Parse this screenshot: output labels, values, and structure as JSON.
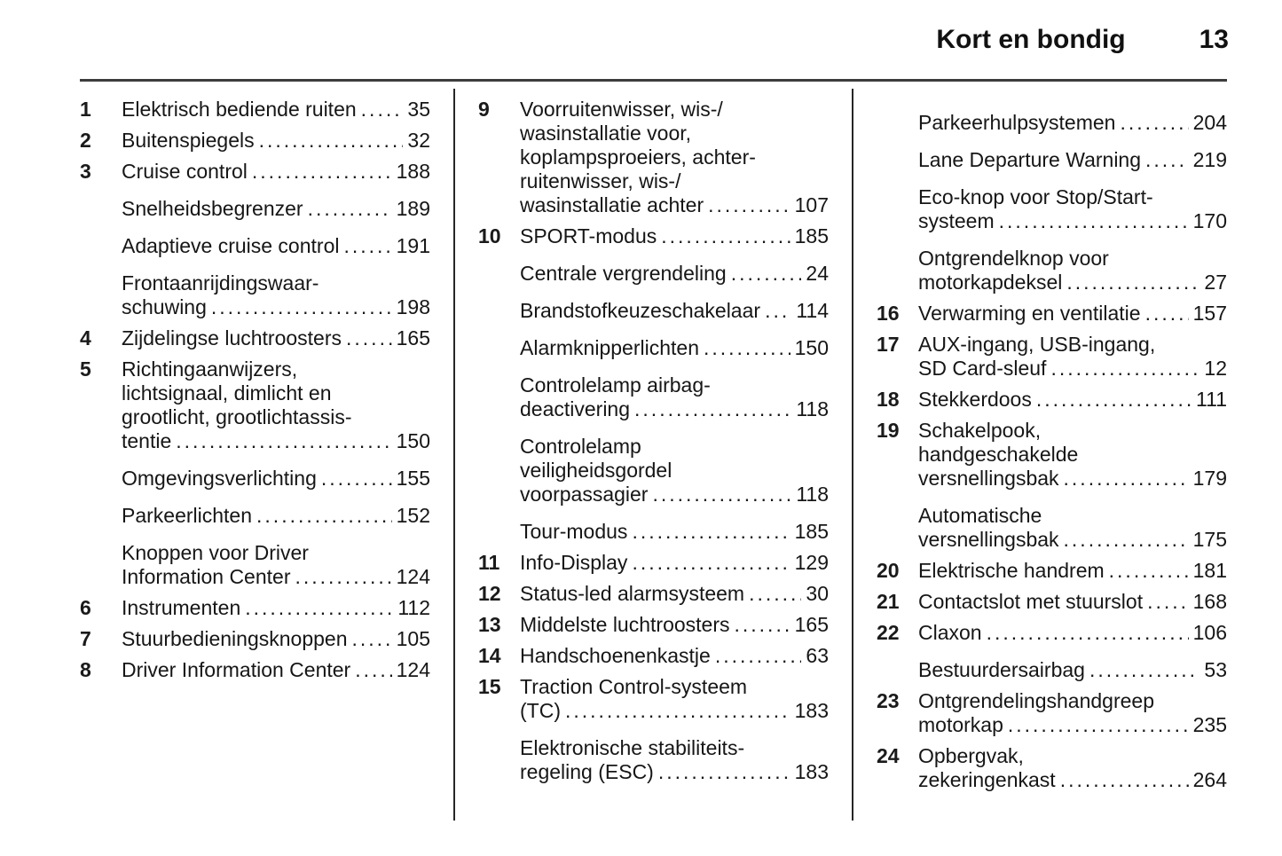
{
  "header": {
    "section_title": "Kort en bondig",
    "page_number": "13"
  },
  "columns": [
    {
      "entries": [
        {
          "num": "1",
          "lines": [
            "Elektrisch bediende ruiten"
          ],
          "page": "35"
        },
        {
          "num": "2",
          "lines": [
            "Buitenspiegels"
          ],
          "page": "32"
        },
        {
          "num": "3",
          "lines": [
            "Cruise control"
          ],
          "page": "188"
        },
        {
          "num": "",
          "lines": [
            "Snelheidsbegrenzer"
          ],
          "page": "189"
        },
        {
          "num": "",
          "lines": [
            "Adaptieve cruise control"
          ],
          "page": "191"
        },
        {
          "num": "",
          "lines": [
            "Frontaanrijdingswaar-",
            "schuwing"
          ],
          "page": "198"
        },
        {
          "num": "4",
          "lines": [
            "Zijdelingse luchtroosters"
          ],
          "page": "165"
        },
        {
          "num": "5",
          "lines": [
            "Richtingaanwijzers,",
            "lichtsignaal, dimlicht en",
            "grootlicht, grootlichtassis-",
            "tentie"
          ],
          "page": "150"
        },
        {
          "num": "",
          "lines": [
            "Omgevingsverlichting"
          ],
          "page": "155"
        },
        {
          "num": "",
          "lines": [
            "Parkeerlichten"
          ],
          "page": "152"
        },
        {
          "num": "",
          "lines": [
            "Knoppen voor Driver",
            "Information Center"
          ],
          "page": "124"
        },
        {
          "num": "6",
          "lines": [
            "Instrumenten"
          ],
          "page": "112"
        },
        {
          "num": "7",
          "lines": [
            "Stuurbedieningsknoppen"
          ],
          "page": "105"
        },
        {
          "num": "8",
          "lines": [
            "Driver Information Center"
          ],
          "page": "124"
        }
      ]
    },
    {
      "entries": [
        {
          "num": "9",
          "lines": [
            "Voorruitenwisser, wis-/",
            "wasinstallatie voor,",
            "koplampsproeiers, achter-",
            "ruitenwisser, wis-/",
            "wasinstallatie achter"
          ],
          "page": "107"
        },
        {
          "num": "10",
          "lines": [
            "SPORT-modus"
          ],
          "page": "185"
        },
        {
          "num": "",
          "lines": [
            "Centrale vergrendeling"
          ],
          "page": "24"
        },
        {
          "num": "",
          "lines": [
            "Brandstofkeuzeschakelaar"
          ],
          "page": "114"
        },
        {
          "num": "",
          "lines": [
            "Alarmknipperlichten"
          ],
          "page": "150"
        },
        {
          "num": "",
          "lines": [
            "Controlelamp airbag-",
            "deactivering"
          ],
          "page": "118"
        },
        {
          "num": "",
          "lines": [
            "Controlelamp",
            "veiligheidsgordel",
            "voorpassagier"
          ],
          "page": "118"
        },
        {
          "num": "",
          "lines": [
            "Tour-modus"
          ],
          "page": "185"
        },
        {
          "num": "11",
          "lines": [
            "Info-Display"
          ],
          "page": "129"
        },
        {
          "num": "12",
          "lines": [
            "Status-led alarmsysteem"
          ],
          "page": "30"
        },
        {
          "num": "13",
          "lines": [
            "Middelste luchtroosters"
          ],
          "page": "165"
        },
        {
          "num": "14",
          "lines": [
            "Handschoenenkastje"
          ],
          "page": "63"
        },
        {
          "num": "15",
          "lines": [
            "Traction Control-systeem",
            "(TC)"
          ],
          "page": "183"
        },
        {
          "num": "",
          "lines": [
            "Elektronische stabiliteits-",
            "regeling (ESC)"
          ],
          "page": "183"
        }
      ]
    },
    {
      "entries": [
        {
          "num": "",
          "lines": [
            "Parkeerhulpsystemen"
          ],
          "page": "204"
        },
        {
          "num": "",
          "lines": [
            "Lane Departure Warning"
          ],
          "page": "219"
        },
        {
          "num": "",
          "lines": [
            "Eco-knop voor Stop/Start-",
            "systeem"
          ],
          "page": "170"
        },
        {
          "num": "",
          "lines": [
            "Ontgrendelknop voor",
            "motorkapdeksel"
          ],
          "page": "27"
        },
        {
          "num": "16",
          "lines": [
            "Verwarming en ventilatie"
          ],
          "page": "157"
        },
        {
          "num": "17",
          "lines": [
            "AUX-ingang, USB-ingang,",
            "SD Card-sleuf"
          ],
          "page": "12"
        },
        {
          "num": "18",
          "lines": [
            "Stekkerdoos"
          ],
          "page": "111"
        },
        {
          "num": "19",
          "lines": [
            "Schakelpook,",
            "handgeschakelde",
            "versnellingsbak"
          ],
          "page": "179"
        },
        {
          "num": "",
          "lines": [
            "Automatische",
            "versnellingsbak"
          ],
          "page": "175"
        },
        {
          "num": "20",
          "lines": [
            "Elektrische handrem"
          ],
          "page": "181"
        },
        {
          "num": "21",
          "lines": [
            "Contactslot met stuurslot"
          ],
          "page": "168"
        },
        {
          "num": "22",
          "lines": [
            "Claxon"
          ],
          "page": "106"
        },
        {
          "num": "",
          "lines": [
            "Bestuurdersairbag"
          ],
          "page": "53"
        },
        {
          "num": "23",
          "lines": [
            "Ontgrendelingshandgreep",
            "motorkap"
          ],
          "page": "235"
        },
        {
          "num": "24",
          "lines": [
            "Opbergvak,",
            "zekeringenkast"
          ],
          "page": "264"
        }
      ]
    }
  ]
}
